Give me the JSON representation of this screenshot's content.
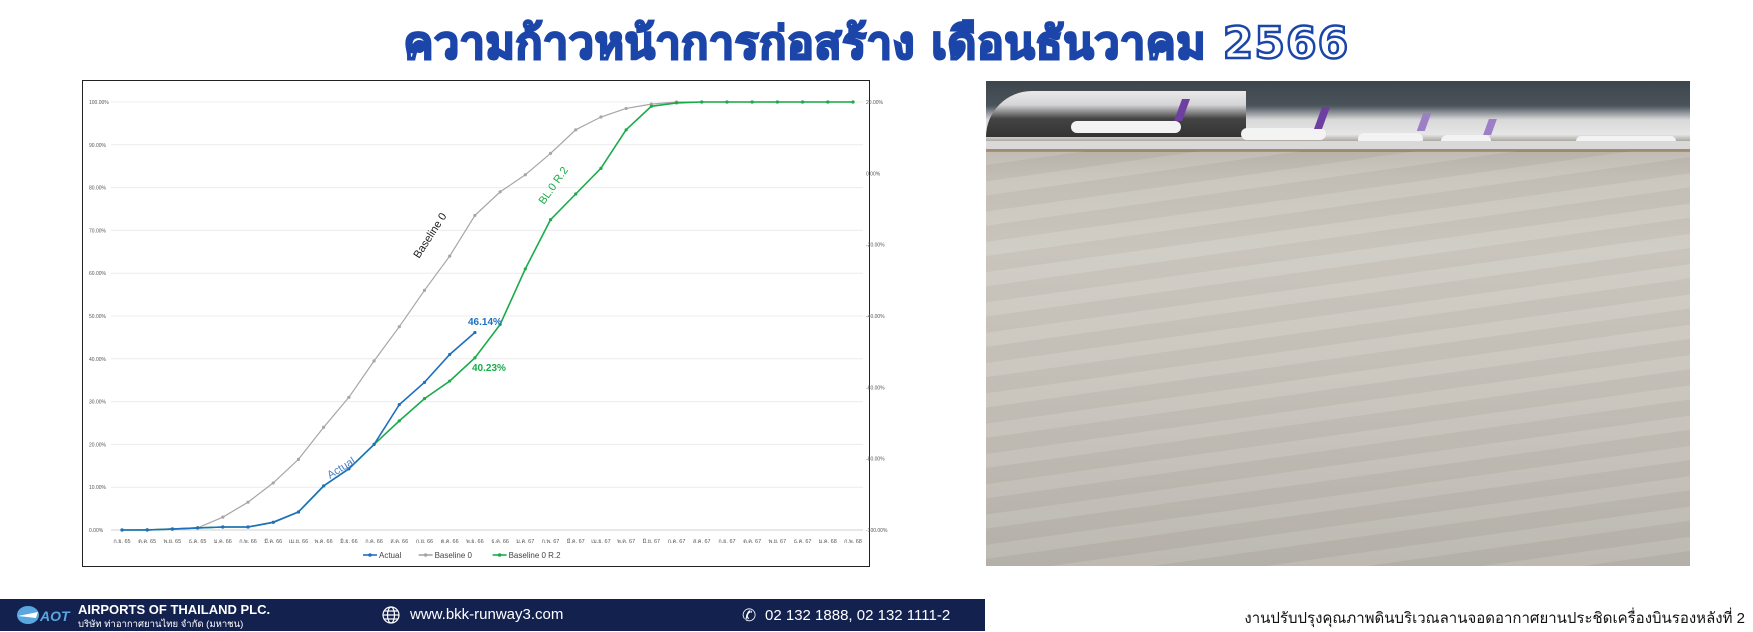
{
  "title": "ความก้าวหน้าการก่อสร้าง เดือนธันวาคม 2566",
  "chart_data": {
    "type": "line",
    "categories": [
      "ก.ย. 65",
      "ต.ค. 65",
      "พ.ย. 65",
      "ธ.ค. 65",
      "ม.ค. 66",
      "ก.พ. 66",
      "มี.ค. 66",
      "เม.ย. 66",
      "พ.ค. 66",
      "มิ.ย. 66",
      "ก.ค. 66",
      "ส.ค. 66",
      "ก.ย. 66",
      "ต.ค. 66",
      "พ.ย. 66",
      "ธ.ค. 66",
      "ม.ค. 67",
      "ก.พ. 67",
      "มี.ค. 67",
      "เม.ย. 67",
      "พ.ค. 67",
      "มิ.ย. 67",
      "ก.ค. 67",
      "ส.ค. 67",
      "ก.ย. 67",
      "ต.ค. 67",
      "พ.ย. 67",
      "ธ.ค. 67",
      "ม.ค. 68",
      "ก.พ. 68"
    ],
    "series": [
      {
        "name": "Baseline 0",
        "color": "#a6a6a6",
        "values": [
          0,
          0.1,
          0.3,
          0.5,
          3.0,
          6.5,
          11.0,
          16.5,
          24.0,
          31.0,
          39.5,
          47.5,
          56.0,
          64.0,
          73.5,
          79.0,
          83.0,
          88.0,
          93.5,
          96.5,
          98.5,
          99.5,
          100,
          100,
          100,
          100,
          100,
          100,
          100,
          100
        ]
      },
      {
        "name": "Baseline 0 R.2",
        "color": "#1aab4b",
        "values": [
          0,
          0,
          0.2,
          0.5,
          0.7,
          0.7,
          1.8,
          4.2,
          10.3,
          14.3,
          20.0,
          25.5,
          30.7,
          34.8,
          40.23,
          48.0,
          61.0,
          72.5,
          78.5,
          84.5,
          93.5,
          99.0,
          99.8,
          100,
          100,
          100,
          100,
          100,
          100,
          100
        ]
      },
      {
        "name": "Actual",
        "color": "#1f6fbf",
        "values": [
          0,
          0,
          0.2,
          0.5,
          0.7,
          0.7,
          1.8,
          4.2,
          10.3,
          14.3,
          20.0,
          29.3,
          34.5,
          41.0,
          46.14,
          null,
          null,
          null,
          null,
          null,
          null,
          null,
          null,
          null,
          null,
          null,
          null,
          null,
          null,
          null
        ]
      }
    ],
    "legend_order": [
      "Actual",
      "Baseline 0",
      "Baseline 0 R.2"
    ],
    "y_ticks": [
      "0.00%",
      "10.00%",
      "20.00%",
      "30.00%",
      "40.00%",
      "50.00%",
      "60.00%",
      "70.00%",
      "80.00%",
      "90.00%",
      "100.00%"
    ],
    "ylim": [
      0,
      100
    ],
    "y2_ticks": [
      "20.00%",
      "0.00%",
      "-20.00%",
      "-40.00%",
      "-60.00%",
      "-80.00%",
      "-100.00%"
    ],
    "y2lim": [
      -100,
      20
    ],
    "grid": true,
    "legend_placement": "bottom",
    "annotations": {
      "baseline": "Baseline 0",
      "actual": "Actual",
      "actual_value": "46.14%",
      "r2_value": "40.23%",
      "r2": "BL.0 R.2"
    }
  },
  "footer": {
    "company_en": "AIRPORTS OF THAILAND PLC.",
    "company_th": "บริษัท ท่าอากาศยานไทย จำกัด (มหาชน)",
    "logo_text": "AOT",
    "website": "www.bkk-runway3.com",
    "phone": "02 132 1888, 02 132 1111-2",
    "navy": "#13214f"
  },
  "caption": "งานปรับปรุงคุณภาพดินบริเวณลานจอดอากาศยานประชิดเครื่องบินรองหลังที่ 2"
}
